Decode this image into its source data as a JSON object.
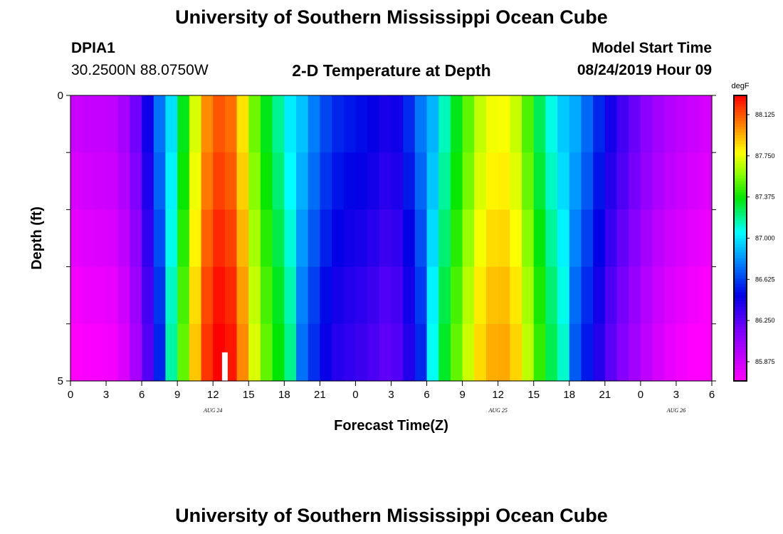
{
  "header": {
    "title": "University of Southern Mississippi Ocean Cube",
    "station_id": "DPIA1",
    "station_coords": "30.2500N 88.0750W",
    "plot_title": "2-D Temperature at Depth",
    "model_start_label": "Model Start Time",
    "model_start_value": "08/24/2019 Hour 09"
  },
  "footer": {
    "title": "University of Southern Mississippi Ocean Cube"
  },
  "colors": {
    "scale_min": "#ff00ff",
    "scale_max": "#ff0000",
    "marker": "#ffffff"
  },
  "chart_data": {
    "type": "heatmap",
    "title": "2-D Temperature at Depth",
    "xlabel": "Forecast Time(Z)",
    "ylabel": "Depth (ft)",
    "units": "degF",
    "x_range_hours": [
      0,
      54
    ],
    "y_range": [
      0,
      5
    ],
    "y_ticks": [
      0,
      1,
      2,
      3,
      4,
      5
    ],
    "y_tick_labels": [
      "0",
      "",
      "",
      "",
      "",
      "5"
    ],
    "x_ticks_hours": [
      0,
      3,
      6,
      9,
      12,
      15,
      18,
      21,
      24,
      27,
      30,
      33,
      36,
      39,
      42,
      45,
      48,
      51,
      54
    ],
    "x_tick_labels": [
      "0",
      "3",
      "6",
      "9",
      "12",
      "15",
      "18",
      "21",
      "0",
      "3",
      "6",
      "9",
      "12",
      "15",
      "18",
      "21",
      "0",
      "3",
      "6"
    ],
    "day_labels": [
      {
        "hour": 12,
        "label": "AUG 24"
      },
      {
        "hour": 36,
        "label": "AUG 25"
      },
      {
        "hour": 51,
        "label": "AUG 26"
      }
    ],
    "depth_levels_ft": [
      0,
      1,
      2,
      3,
      4,
      5
    ],
    "surface_temp_hourly": [
      85.83,
      85.85,
      85.87,
      85.86,
      85.9,
      86.05,
      86.25,
      86.55,
      86.85,
      87.2,
      87.55,
      87.95,
      88.15,
      88.18,
      88.05,
      87.7,
      87.45,
      87.3,
      87.15,
      86.95,
      86.8,
      86.65,
      86.55,
      86.5,
      86.48,
      86.45,
      86.4,
      86.35,
      86.45,
      86.62,
      86.8,
      87.05,
      87.3,
      87.45,
      87.65,
      87.78,
      87.82,
      87.8,
      87.65,
      87.4,
      87.2,
      87.05,
      86.9,
      86.75,
      86.6,
      86.45,
      86.32,
      86.22,
      86.12,
      86.02,
      85.95,
      85.9,
      85.86,
      85.82,
      85.8
    ],
    "depth_offsets_ft": [
      -0.04,
      0.0,
      0.05,
      0.1,
      0.14
    ],
    "color_scale": {
      "min": 85.7,
      "max": 88.3,
      "tick_values": [
        85.875,
        86.25,
        86.625,
        87.0,
        87.375,
        87.75,
        88.125
      ],
      "tick_labels": [
        "85.875",
        "86.250",
        "86.625",
        "87.000",
        "87.375",
        "87.750",
        "88.125"
      ],
      "label": "degF"
    },
    "marker": {
      "hour": 13,
      "depth_top": 4.5,
      "depth_bottom": 5
    }
  }
}
